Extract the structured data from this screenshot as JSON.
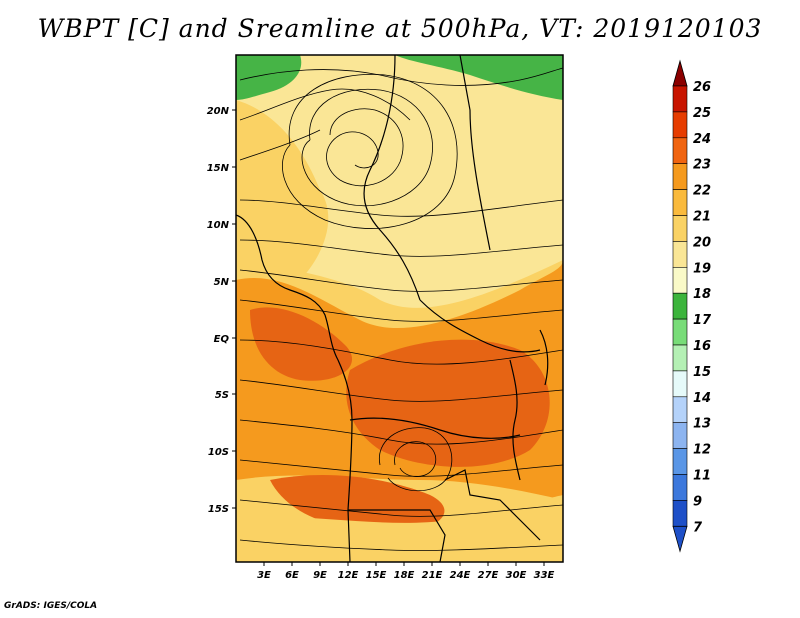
{
  "title": "WBPT [C] and Sreamline at 500hPa, VT: 2019120103",
  "credit": "GrADS: IGES/COLA",
  "map": {
    "lat_ticks": [
      "20N",
      "15N",
      "10N",
      "5N",
      "EQ",
      "5S",
      "10S",
      "15S"
    ],
    "lon_ticks": [
      "3E",
      "6E",
      "9E",
      "12E",
      "15E",
      "18E",
      "21E",
      "24E",
      "27E",
      "30E",
      "33E"
    ]
  },
  "colorbar": {
    "labels": [
      "26",
      "25",
      "24",
      "23",
      "22",
      "21",
      "20",
      "19",
      "18",
      "17",
      "16",
      "15",
      "14",
      "13",
      "12",
      "11",
      "9",
      "7"
    ],
    "colors": [
      "#a00000",
      "#c81400",
      "#e63c00",
      "#f06410",
      "#f59a1e",
      "#faba3c",
      "#fad264",
      "#fae696",
      "#fafac8",
      "#3cb43c",
      "#78dc78",
      "#b4f0b4",
      "#e6fafa",
      "#b4d2fa",
      "#8cb4f0",
      "#5a96e6",
      "#3c78dc",
      "#1e50c8"
    ],
    "arrow_top": "#8b0000",
    "arrow_bottom": "#1e50c8"
  },
  "colors": {
    "green": "#46b446",
    "pale": "#fae696",
    "light_orange": "#fad264",
    "orange": "#f59a1e",
    "dark_orange": "#e66414"
  }
}
